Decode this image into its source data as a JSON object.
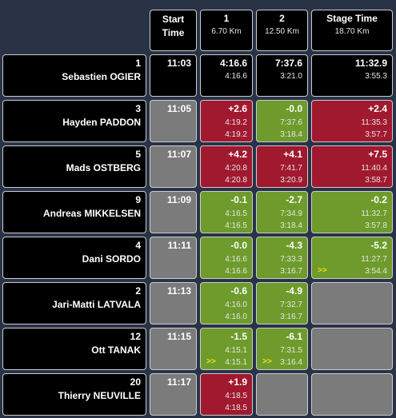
{
  "header": {
    "columns": [
      {
        "title": "Start Time"
      },
      {
        "title": "1",
        "sub": "6.70 Km"
      },
      {
        "title": "2",
        "sub": "12.50 Km"
      },
      {
        "title": "Stage Time",
        "sub": "18.70 Km"
      }
    ]
  },
  "rows": [
    {
      "number": "1",
      "name": "Sebastien OGIER",
      "start": "11:03",
      "start_color": "black",
      "cells": [
        {
          "color": "black",
          "time": "4:16.6",
          "split": "4:16.6"
        },
        {
          "color": "black",
          "time": "7:37.6",
          "split": "3:21.0"
        },
        {
          "color": "black",
          "time": "11:32.9",
          "split": "3:55.3"
        }
      ]
    },
    {
      "number": "3",
      "name": "Hayden PADDON",
      "start": "11:05",
      "start_color": "grey",
      "cells": [
        {
          "color": "red",
          "delta": "+2.6",
          "time": "4:19.2",
          "split": "4:19.2"
        },
        {
          "color": "green",
          "delta": "-0.0",
          "time": "7:37.6",
          "split": "3:18.4"
        },
        {
          "color": "red",
          "delta": "+2.4",
          "time": "11:35.3",
          "split": "3:57.7"
        }
      ]
    },
    {
      "number": "5",
      "name": "Mads OSTBERG",
      "start": "11:07",
      "start_color": "grey",
      "cells": [
        {
          "color": "red",
          "delta": "+4.2",
          "time": "4:20.8",
          "split": "4:20.8"
        },
        {
          "color": "red",
          "delta": "+4.1",
          "time": "7:41.7",
          "split": "3:20.9"
        },
        {
          "color": "red",
          "delta": "+7.5",
          "time": "11:40.4",
          "split": "3:58.7"
        }
      ]
    },
    {
      "number": "9",
      "name": "Andreas MIKKELSEN",
      "start": "11:09",
      "start_color": "grey",
      "cells": [
        {
          "color": "green",
          "delta": "-0.1",
          "time": "4:16.5",
          "split": "4:16.5"
        },
        {
          "color": "green",
          "delta": "-2.7",
          "time": "7:34.9",
          "split": "3:18.4"
        },
        {
          "color": "green",
          "delta": "-0.2",
          "time": "11:32.7",
          "split": "3:57.8"
        }
      ]
    },
    {
      "number": "4",
      "name": "Dani SORDO",
      "start": "11:11",
      "start_color": "grey",
      "cells": [
        {
          "color": "green",
          "delta": "-0.0",
          "time": "4:16.6",
          "split": "4:16.6"
        },
        {
          "color": "green",
          "delta": "-4.3",
          "time": "7:33.3",
          "split": "3:16.7"
        },
        {
          "color": "green",
          "delta": "-5.2",
          "time": "11:27.7",
          "split": "3:54.4",
          "marker": ">>"
        }
      ]
    },
    {
      "number": "2",
      "name": "Jari-Matti LATVALA",
      "start": "11:13",
      "start_color": "grey",
      "cells": [
        {
          "color": "green",
          "delta": "-0.6",
          "time": "4:16.0",
          "split": "4:16.0"
        },
        {
          "color": "green",
          "delta": "-4.9",
          "time": "7:32.7",
          "split": "3:16.7"
        },
        {
          "color": "grey"
        }
      ]
    },
    {
      "number": "12",
      "name": "Ott TANAK",
      "start": "11:15",
      "start_color": "grey",
      "cells": [
        {
          "color": "green",
          "delta": "-1.5",
          "time": "4:15.1",
          "split": "4:15.1",
          "marker": ">>"
        },
        {
          "color": "green",
          "delta": "-6.1",
          "time": "7:31.5",
          "split": "3:16.4",
          "marker": ">>"
        },
        {
          "color": "grey"
        }
      ]
    },
    {
      "number": "20",
      "name": "Thierry NEUVILLE",
      "start": "11:17",
      "start_color": "grey",
      "cells": [
        {
          "color": "red",
          "delta": "+1.9",
          "time": "4:18.5",
          "split": "4:18.5"
        },
        {
          "color": "grey"
        },
        {
          "color": "grey"
        }
      ]
    }
  ]
}
